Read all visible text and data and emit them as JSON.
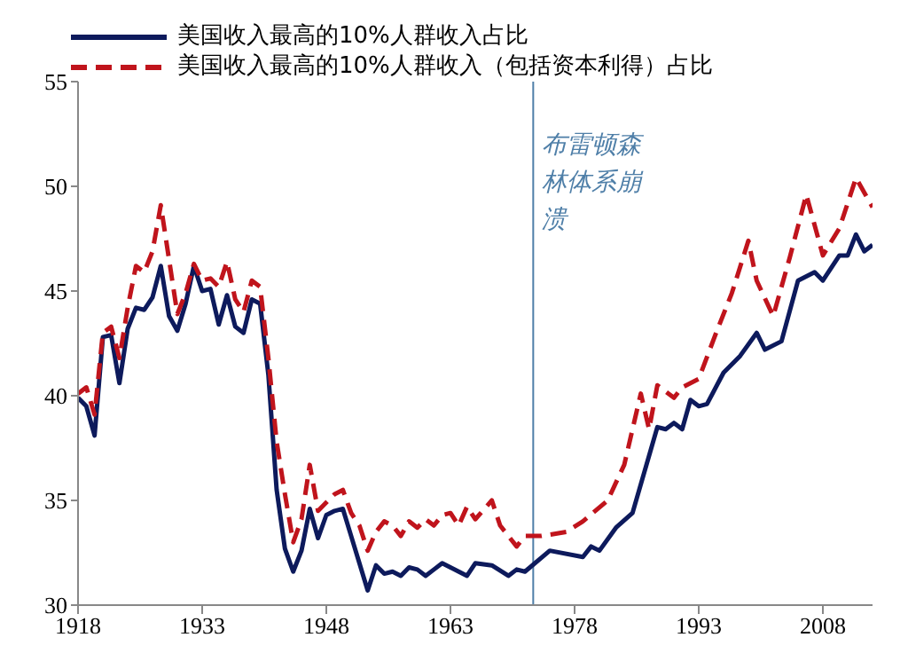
{
  "chart_data": {
    "type": "line",
    "xlim": [
      1918,
      2014
    ],
    "xticks": [
      1918,
      1933,
      1948,
      1963,
      1978,
      1993,
      2008
    ],
    "ylim": [
      30,
      55
    ],
    "yticks": [
      30,
      35,
      40,
      45,
      50,
      55
    ],
    "grid": false,
    "legend": "top left",
    "marker": "none",
    "ref_lines": [
      {
        "axis": "x",
        "value": 1973,
        "label": "布雷顿森林体系崩溃",
        "color": "#4f7fa8"
      }
    ],
    "series": [
      {
        "name": "美国收入最高的10%人群收入占比",
        "color": "#0d1a5c",
        "line_style": "solid",
        "x": [
          1918,
          1919,
          1920,
          1921,
          1922,
          1923,
          1924,
          1925,
          1926,
          1927,
          1928,
          1929,
          1930,
          1931,
          1932,
          1933,
          1934,
          1935,
          1936,
          1937,
          1938,
          1939,
          1940,
          1941,
          1942,
          1943,
          1944,
          1945,
          1946,
          1947,
          1948,
          1949,
          1950,
          1951,
          1952,
          1953,
          1954,
          1955,
          1956,
          1957,
          1958,
          1959,
          1960,
          1961,
          1962,
          1963,
          1964,
          1965,
          1966,
          1968,
          1970,
          1971,
          1972,
          1975,
          1979,
          1980,
          1981,
          1983,
          1985,
          1988,
          1989,
          1990,
          1991,
          1992,
          1993,
          1994,
          1996,
          1998,
          2000,
          2001,
          2003,
          2005,
          2007,
          2008,
          2010,
          2011,
          2012,
          2013,
          2014
        ],
        "values": [
          39.9,
          39.5,
          38.1,
          42.8,
          42.9,
          40.6,
          43.2,
          44.2,
          44.1,
          44.7,
          46.2,
          43.8,
          43.1,
          44.4,
          46.2,
          45.0,
          45.1,
          43.4,
          44.8,
          43.3,
          43.0,
          44.6,
          44.4,
          41.0,
          35.5,
          32.7,
          31.6,
          32.6,
          34.6,
          33.2,
          34.3,
          34.5,
          34.6,
          33.3,
          32.0,
          30.7,
          31.9,
          31.5,
          31.6,
          31.4,
          31.8,
          31.7,
          31.4,
          31.7,
          32.0,
          31.8,
          31.6,
          31.4,
          32.0,
          31.9,
          31.4,
          31.7,
          31.6,
          32.6,
          32.3,
          32.8,
          32.6,
          33.7,
          34.4,
          38.5,
          38.4,
          38.7,
          38.4,
          39.8,
          39.5,
          39.6,
          41.1,
          41.9,
          43.0,
          42.2,
          42.6,
          45.5,
          45.9,
          45.5,
          46.7,
          46.7,
          47.7,
          46.9,
          47.2
        ]
      },
      {
        "name": "美国收入最高的10%人群收入（包括资本利得）占比",
        "color": "#c0141c",
        "line_style": "dashed",
        "x": [
          1918,
          1919,
          1920,
          1921,
          1922,
          1923,
          1924,
          1925,
          1926,
          1927,
          1928,
          1929,
          1930,
          1931,
          1932,
          1933,
          1934,
          1935,
          1936,
          1937,
          1938,
          1939,
          1940,
          1941,
          1942,
          1943,
          1944,
          1945,
          1946,
          1947,
          1948,
          1949,
          1950,
          1951,
          1952,
          1953,
          1954,
          1955,
          1956,
          1957,
          1958,
          1959,
          1960,
          1961,
          1962,
          1963,
          1964,
          1965,
          1966,
          1968,
          1969,
          1971,
          1972,
          1974,
          1977,
          1979,
          1982,
          1984,
          1986,
          1987,
          1988,
          1990,
          1991,
          1993,
          1995,
          1997,
          1999,
          2000,
          2002,
          2004,
          2006,
          2008,
          2010,
          2012,
          2014
        ],
        "values": [
          40.1,
          40.4,
          39.1,
          43.0,
          43.3,
          41.8,
          44.2,
          46.2,
          45.9,
          46.9,
          49.1,
          46.5,
          43.9,
          44.9,
          46.3,
          45.5,
          45.6,
          45.2,
          46.4,
          44.6,
          44.0,
          45.5,
          45.2,
          41.8,
          37.8,
          35.3,
          33.0,
          34.1,
          36.7,
          34.5,
          34.9,
          35.3,
          35.5,
          34.4,
          33.8,
          32.6,
          33.5,
          34.0,
          33.8,
          33.3,
          34.0,
          33.7,
          34.1,
          33.8,
          34.3,
          34.4,
          33.8,
          34.7,
          34.1,
          35.0,
          33.8,
          32.8,
          33.3,
          33.3,
          33.5,
          34.0,
          35.0,
          36.7,
          40.1,
          38.4,
          40.5,
          39.9,
          40.4,
          40.8,
          42.9,
          44.9,
          47.4,
          45.5,
          43.8,
          46.6,
          49.6,
          46.7,
          48.0,
          50.4,
          49.0
        ]
      }
    ]
  }
}
